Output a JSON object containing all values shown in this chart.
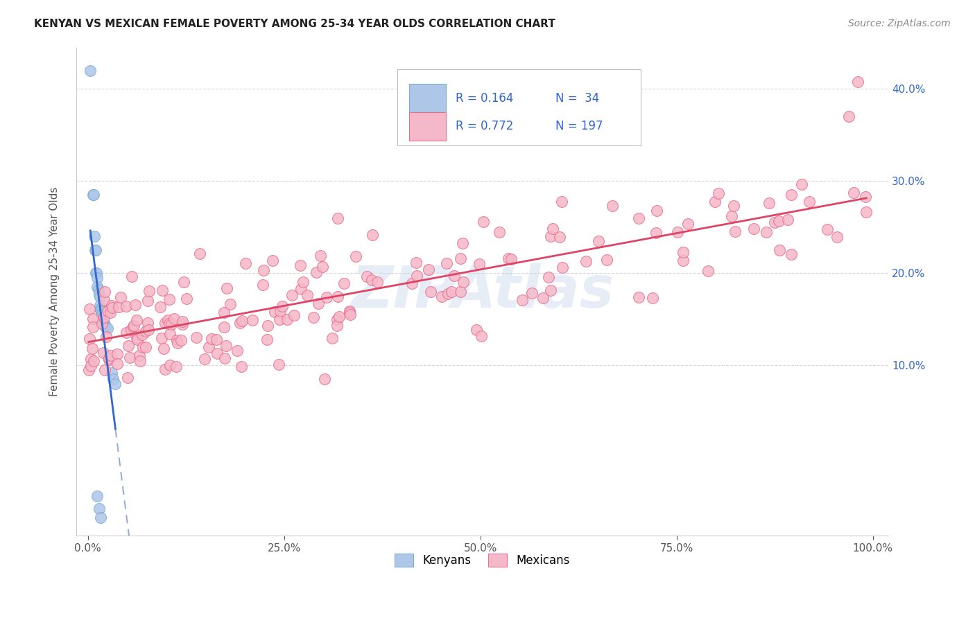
{
  "title": "KENYAN VS MEXICAN FEMALE POVERTY AMONG 25-34 YEAR OLDS CORRELATION CHART",
  "source": "Source: ZipAtlas.com",
  "ylabel": "Female Poverty Among 25-34 Year Olds",
  "kenyan_R": 0.164,
  "kenyan_N": 34,
  "mexican_R": 0.772,
  "mexican_N": 197,
  "kenyan_color": "#aec6e8",
  "kenyan_edge": "#7bafd4",
  "mexican_color": "#f5b8c8",
  "mexican_edge": "#e87090",
  "kenyan_line_color": "#3366cc",
  "kenyan_dash_color": "#99aedd",
  "mexican_line_color": "#dd4466",
  "watermark": "ZIPAtlas",
  "background_color": "#ffffff",
  "grid_color": "#cccccc",
  "xlim": [
    -0.015,
    1.02
  ],
  "ylim": [
    -0.085,
    0.445
  ],
  "ytick_right_color": "#3366cc",
  "title_color": "#222222",
  "source_color": "#888888",
  "ylabel_color": "#555555"
}
